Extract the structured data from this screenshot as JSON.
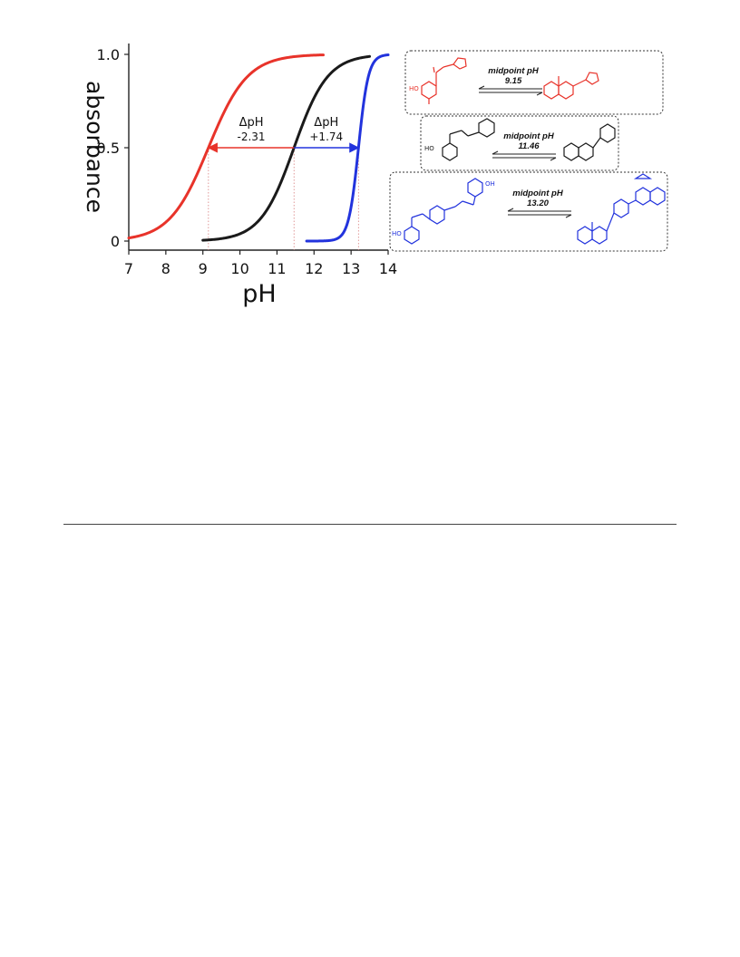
{
  "chart_data": {
    "type": "line",
    "xlabel": "pH",
    "ylabel": "absorbance",
    "xlim": [
      7,
      14
    ],
    "ylim": [
      0,
      1.0
    ],
    "x_ticks": [
      7,
      8,
      9,
      10,
      11,
      12,
      13,
      14
    ],
    "y_ticks": [
      0,
      0.5,
      1.0
    ],
    "y_tick_labels": [
      "0",
      "0.5",
      "1.0"
    ],
    "grid": false,
    "series": [
      {
        "color": "#e8332a",
        "midpoint": 9.15,
        "steepness": 1.9,
        "x_start": 7.0,
        "x_end": 12.25
      },
      {
        "color": "#1a1a1a",
        "midpoint": 11.46,
        "steepness": 2.2,
        "x_start": 9.0,
        "x_end": 13.5
      },
      {
        "color": "#2233dd",
        "midpoint": 13.2,
        "steepness": 7.5,
        "x_start": 11.8,
        "x_end": 14.0
      }
    ],
    "annotations": [
      {
        "label": "ΔpH",
        "value": "-2.31",
        "from_x": 11.46,
        "to_x": 9.15,
        "y": 0.5,
        "color": "#e8332a"
      },
      {
        "label": "ΔpH",
        "value": "+1.74",
        "from_x": 11.46,
        "to_x": 13.2,
        "y": 0.5,
        "color": "#2233dd"
      }
    ],
    "reference_lines_x": [
      9.15,
      11.46,
      13.2
    ]
  },
  "schemes": [
    {
      "label": "midpoint pH",
      "value": "9.15",
      "color": "#e8332a"
    },
    {
      "label": "midpoint pH",
      "value": "11.46",
      "color": "#1a1a1a"
    },
    {
      "label": "midpoint pH",
      "value": "13.20",
      "color": "#2233dd"
    }
  ],
  "molecule_labels": {
    "ho": "HO",
    "oh": "OH",
    "o": "O"
  }
}
